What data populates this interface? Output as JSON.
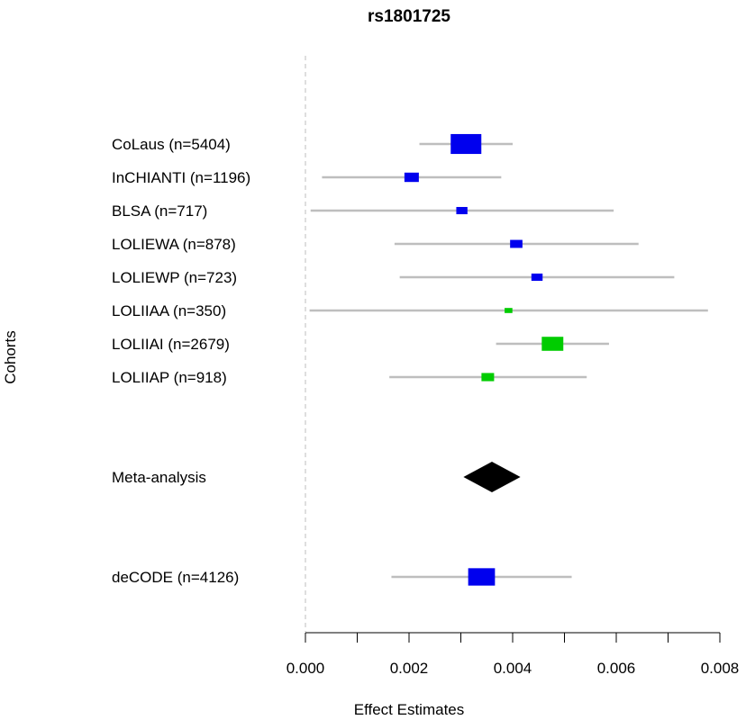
{
  "chart_data": {
    "type": "forest",
    "title": "rs1801725",
    "xlabel": "Effect Estimates",
    "ylabel": "Cohorts",
    "xlim": [
      0.0,
      0.008
    ],
    "x_ticks": [
      "0.000",
      "0.002",
      "0.004",
      "0.006",
      "0.008"
    ],
    "x_tick_values": [
      0.0,
      0.001,
      0.002,
      0.003,
      0.004,
      0.005,
      0.006,
      0.007,
      0.008
    ],
    "reference_line": 0.0,
    "colors": {
      "blue": "#0000ee",
      "green": "#00cc00",
      "ci": "#bebebe",
      "meta": "#000000",
      "refline": "#bdbdbd"
    },
    "rows": [
      {
        "label": "CoLaus (n=5404)",
        "estimate": 0.0031,
        "lower": 0.0022,
        "upper": 0.004,
        "n": 5404,
        "color": "blue"
      },
      {
        "label": "InCHIANTI (n=1196)",
        "estimate": 0.00205,
        "lower": 0.00032,
        "upper": 0.00378,
        "n": 1196,
        "color": "blue"
      },
      {
        "label": "BLSA (n=717)",
        "estimate": 0.00302,
        "lower": 0.0001,
        "upper": 0.00595,
        "n": 717,
        "color": "blue"
      },
      {
        "label": "LOLIEWA (n=878)",
        "estimate": 0.00407,
        "lower": 0.00172,
        "upper": 0.00643,
        "n": 878,
        "color": "blue"
      },
      {
        "label": "LOLIEWP (n=723)",
        "estimate": 0.00447,
        "lower": 0.00182,
        "upper": 0.00712,
        "n": 723,
        "color": "blue"
      },
      {
        "label": "LOLIIAA (n=350)",
        "estimate": 0.00392,
        "lower": 8e-05,
        "upper": 0.00777,
        "n": 350,
        "color": "green"
      },
      {
        "label": "LOLIIAI (n=2679)",
        "estimate": 0.00477,
        "lower": 0.00368,
        "upper": 0.00586,
        "n": 2679,
        "color": "green"
      },
      {
        "label": "LOLIIAP (n=918)",
        "estimate": 0.00352,
        "lower": 0.00162,
        "upper": 0.00543,
        "n": 918,
        "color": "green"
      }
    ],
    "meta": {
      "label": "Meta-analysis",
      "estimate": 0.0036,
      "lower": 0.00305,
      "upper": 0.00415
    },
    "replication": {
      "label": "deCODE (n=4126)",
      "estimate": 0.0034,
      "lower": 0.00166,
      "upper": 0.00514,
      "n": 4126,
      "color": "blue"
    }
  }
}
